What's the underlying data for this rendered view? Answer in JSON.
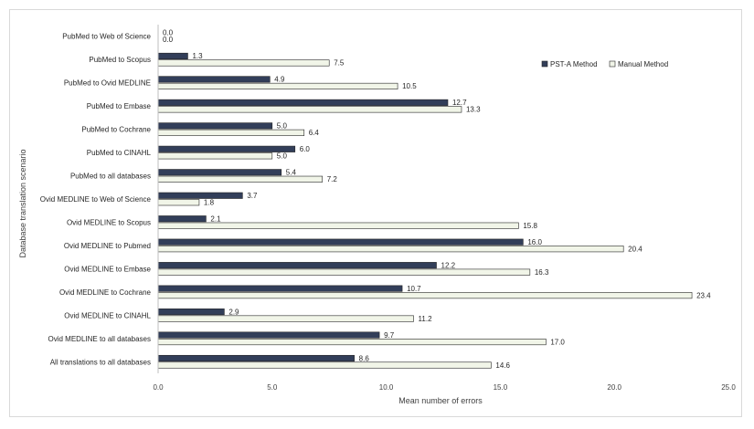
{
  "chart_data": {
    "type": "bar",
    "orientation": "horizontal",
    "categories": [
      "PubMed to Web of Science",
      "PubMed to Scopus",
      "PubMed to Ovid MEDLINE",
      "PubMed to Embase",
      "PubMed to Cochrane",
      "PubMed to CINAHL",
      "PubMed to all databases",
      "Ovid MEDLINE to Web of Science",
      "Ovid MEDLINE to Scopus",
      "Ovid MEDLINE to Pubmed",
      "Ovid MEDLINE to Embase",
      "Ovid MEDLINE to Cochrane",
      "Ovid MEDLINE to CINAHL",
      "Ovid MEDLINE to all databases",
      "All translations to all databases"
    ],
    "series": [
      {
        "name": "PST-A Method",
        "color": "#323e59",
        "values": [
          0.0,
          1.3,
          4.9,
          12.7,
          5.0,
          6.0,
          5.4,
          3.7,
          2.1,
          16.0,
          12.2,
          10.7,
          2.9,
          9.7,
          8.6
        ],
        "labels": [
          "0.0",
          "1.3",
          "4.9",
          "12.7",
          "5.0",
          "6.0",
          "5.4",
          "3.7",
          "2.1",
          "16.0",
          "12.2",
          "10.7",
          "2.9",
          "9.7",
          "8.6"
        ]
      },
      {
        "name": "Manual Method",
        "color": "#f1f5e8",
        "values": [
          0.0,
          7.5,
          10.5,
          13.3,
          6.4,
          5.0,
          7.2,
          1.8,
          15.8,
          20.4,
          16.3,
          23.4,
          11.2,
          17.0,
          14.6
        ],
        "labels": [
          "0.0",
          "7.5",
          "10.5",
          "13.3",
          "6.4",
          "5.0",
          "7.2",
          "1.8",
          "15.8",
          "20.4",
          "16.3",
          "23.4",
          "11.2",
          "17.0",
          "14.6"
        ]
      }
    ],
    "xlabel": "Mean number of errors",
    "ylabel": "Database translation scenario",
    "xlim": [
      0,
      25
    ],
    "xticks": [
      "0.0",
      "5.0",
      "10.0",
      "15.0",
      "20.0",
      "25.0"
    ],
    "grid": false,
    "legend_position": "top-right"
  }
}
